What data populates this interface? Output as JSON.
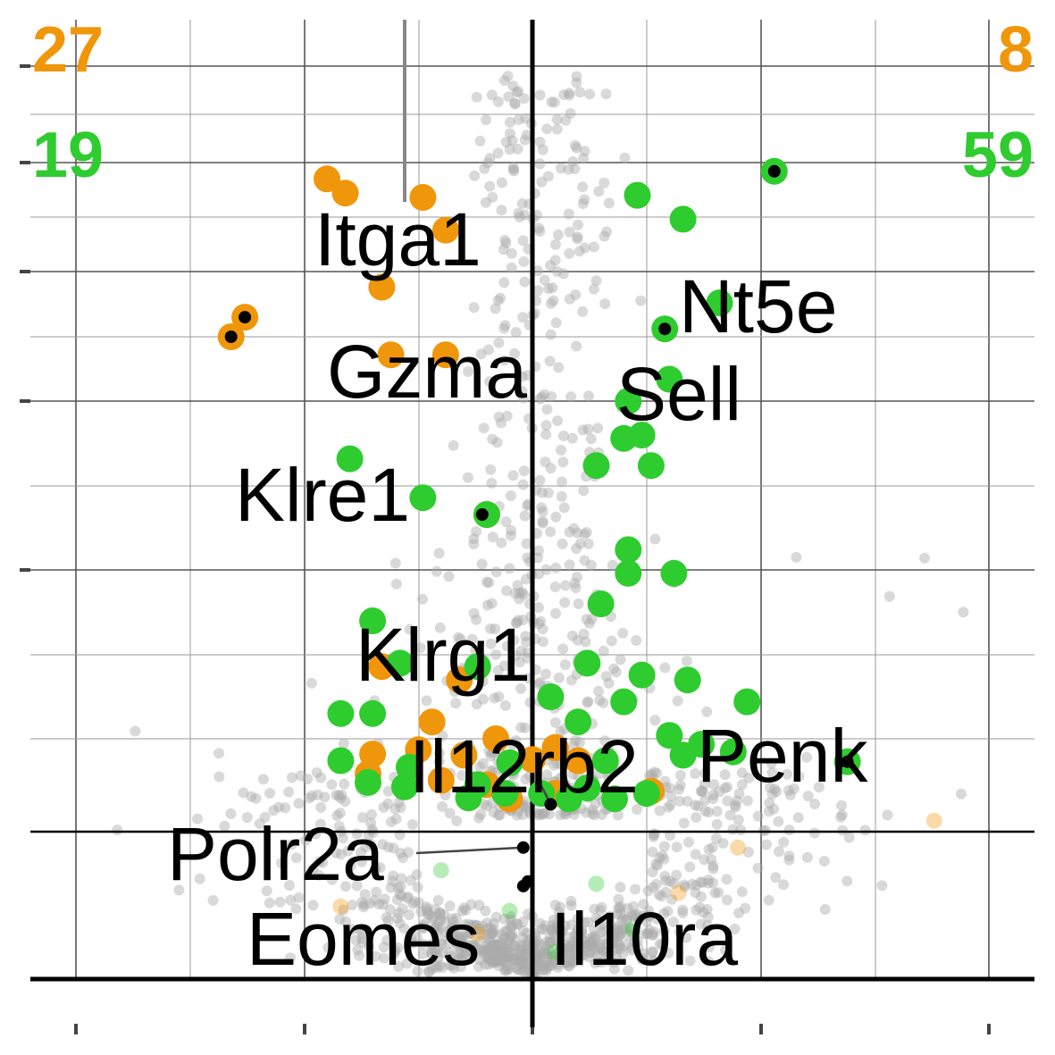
{
  "chart_data": {
    "type": "scatter",
    "title": "",
    "xlabel": "",
    "ylabel": "",
    "xlim": [
      -2.0,
      2.2
    ],
    "ylim": [
      -0.05,
      7.3
    ],
    "grid": true,
    "threshold_lines": {
      "x": 0,
      "y": 0.65
    },
    "colors": {
      "background_points": "#aaaaaa",
      "up_group": "#2ecc2e",
      "down_group": "#f0960a",
      "label_text": "#000000"
    },
    "counts": {
      "top_left": {
        "value": "27",
        "color": "#f0960a"
      },
      "top_right": {
        "value": "8",
        "color": "#f0960a"
      },
      "second_left": {
        "value": "19",
        "color": "#2ecc2e"
      },
      "second_right": {
        "value": "59",
        "color": "#2ecc2e"
      }
    },
    "labeled_genes": [
      {
        "name": "Itga1",
        "x": -0.56,
        "y": 6.8
      },
      {
        "name": "Nt5e",
        "x": 0.53,
        "y": 5.42
      },
      {
        "name": "Gzma",
        "x": -0.63,
        "y": 4.15
      },
      {
        "name": "Sell",
        "x": 0.29,
        "y": 4.06
      },
      {
        "name": "Klre1",
        "x": -0.66,
        "y": 4.0
      },
      {
        "name": "Klrg1",
        "x": -0.11,
        "y": 2.83
      },
      {
        "name": "Il12rb2",
        "x": 0.04,
        "y": 0.9
      },
      {
        "name": "Penk",
        "x": 0.69,
        "y": 1.29
      },
      {
        "name": "Polr2a",
        "x": -0.02,
        "y": 0.58
      },
      {
        "name": "Eomes",
        "x": -0.02,
        "y": 0.41
      },
      {
        "name": "Il10ra",
        "x": -0.01,
        "y": 0.43
      }
    ],
    "highlighted_points": {
      "down": [
        [
          -0.45,
          5.35
        ],
        [
          -0.41,
          5.22
        ],
        [
          -0.24,
          5.18
        ],
        [
          -0.19,
          4.88
        ],
        [
          -0.33,
          4.38
        ],
        [
          -0.63,
          4.15
        ],
        [
          -0.66,
          4.0
        ],
        [
          -0.31,
          3.86
        ],
        [
          -0.19,
          3.86
        ],
        [
          -0.1,
          2.83
        ],
        [
          -0.33,
          1.93
        ],
        [
          -0.16,
          1.85
        ],
        [
          -0.22,
          1.6
        ],
        [
          -0.08,
          1.5
        ],
        [
          0.05,
          1.42
        ],
        [
          -0.35,
          1.36
        ],
        [
          -0.25,
          1.4
        ],
        [
          -0.15,
          1.35
        ],
        [
          0.0,
          1.31
        ],
        [
          0.1,
          1.3
        ],
        [
          -0.36,
          1.18
        ],
        [
          -0.2,
          1.12
        ],
        [
          -0.1,
          1.08
        ],
        [
          0.05,
          1.0
        ],
        [
          0.26,
          1.02
        ],
        [
          -0.05,
          0.95
        ]
      ],
      "up": [
        [
          0.53,
          5.42
        ],
        [
          0.23,
          5.2
        ],
        [
          0.33,
          4.98
        ],
        [
          0.41,
          4.26
        ],
        [
          0.29,
          4.06
        ],
        [
          0.3,
          3.67
        ],
        [
          0.21,
          3.5
        ],
        [
          0.2,
          3.28
        ],
        [
          0.24,
          3.3
        ],
        [
          0.26,
          3.12
        ],
        [
          0.14,
          3.12
        ],
        [
          -0.4,
          3.16
        ],
        [
          -0.24,
          2.93
        ],
        [
          -0.1,
          2.83
        ],
        [
          0.21,
          2.62
        ],
        [
          0.21,
          2.48
        ],
        [
          0.31,
          2.48
        ],
        [
          0.15,
          2.3
        ],
        [
          -0.35,
          2.2
        ],
        [
          -0.29,
          1.95
        ],
        [
          -0.12,
          1.93
        ],
        [
          0.12,
          1.95
        ],
        [
          0.24,
          1.88
        ],
        [
          0.34,
          1.85
        ],
        [
          0.47,
          1.72
        ],
        [
          -0.42,
          1.65
        ],
        [
          -0.35,
          1.65
        ],
        [
          0.04,
          1.75
        ],
        [
          0.2,
          1.72
        ],
        [
          0.1,
          1.6
        ],
        [
          0.3,
          1.52
        ],
        [
          0.37,
          1.45
        ],
        [
          -0.42,
          1.3
        ],
        [
          -0.27,
          1.24
        ],
        [
          -0.05,
          1.28
        ],
        [
          0.16,
          1.3
        ],
        [
          0.33,
          1.35
        ],
        [
          0.44,
          1.38
        ],
        [
          -0.36,
          1.1
        ],
        [
          -0.28,
          1.06
        ],
        [
          -0.12,
          1.08
        ],
        [
          -0.06,
          1.0
        ],
        [
          0.02,
          1.0
        ],
        [
          0.12,
          1.05
        ],
        [
          0.25,
          1.0
        ],
        [
          0.69,
          1.29
        ],
        [
          -0.14,
          0.96
        ],
        [
          0.08,
          0.95
        ],
        [
          0.18,
          0.95
        ]
      ]
    },
    "faint_points": {
      "down": [
        [
          0.45,
          0.58
        ],
        [
          -0.42,
          0.32
        ],
        [
          0.32,
          0.38
        ],
        [
          -0.12,
          0.2
        ],
        [
          0.88,
          0.75
        ]
      ],
      "up": [
        [
          -0.2,
          0.48
        ],
        [
          0.14,
          0.42
        ],
        [
          -0.05,
          0.3
        ],
        [
          0.22,
          0.22
        ],
        [
          0.05,
          0.12
        ]
      ]
    }
  }
}
